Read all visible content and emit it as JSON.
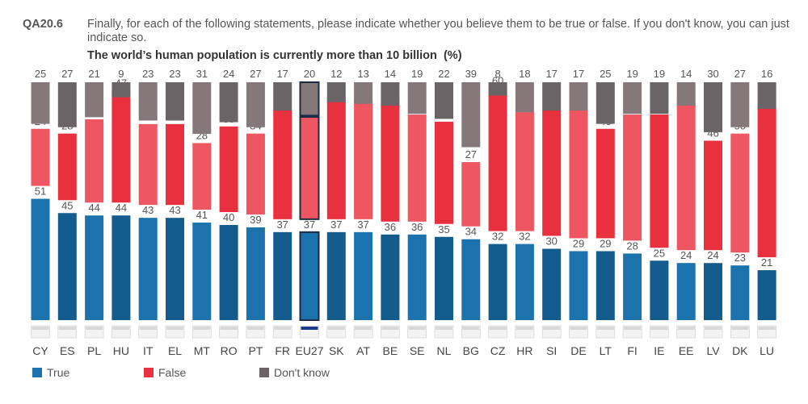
{
  "header": {
    "question_code": "QA20.6",
    "question_text": "Finally, for each of the following statements, please indicate whether you believe them to be true or false. If you don't know, you can just indicate so.",
    "subtitle": "The world’s human population is currently more than 10 billion",
    "subtitle_unit": "(%)"
  },
  "legend": {
    "true_label": "True",
    "false_label": "False",
    "dont_know_label": "Don't know"
  },
  "colors": {
    "true": "#1B72AC",
    "true_dark": "#145C8D",
    "false": "#E8303F",
    "false_light": "#EE5661",
    "dont_know": "#85787B",
    "dont_know_dark": "#6B6466",
    "highlight_outline": "#1F2A44"
  },
  "chart_data": {
    "type": "bar",
    "stacked": true,
    "categories": [
      "CY",
      "ES",
      "PL",
      "HU",
      "IT",
      "EL",
      "MT",
      "RO",
      "PT",
      "FR",
      "EU27",
      "SK",
      "AT",
      "BE",
      "SE",
      "NL",
      "BG",
      "CZ",
      "HR",
      "SI",
      "DE",
      "LT",
      "FI",
      "IE",
      "EE",
      "LV",
      "DK",
      "LU"
    ],
    "highlight": "EU27",
    "series": [
      {
        "name": "True",
        "values": [
          51,
          45,
          44,
          44,
          43,
          43,
          41,
          40,
          39,
          37,
          37,
          37,
          37,
          36,
          36,
          35,
          34,
          32,
          32,
          30,
          29,
          29,
          28,
          25,
          24,
          24,
          23,
          21
        ]
      },
      {
        "name": "False",
        "values": [
          24,
          28,
          35,
          47,
          34,
          34,
          28,
          36,
          34,
          46,
          43,
          51,
          50,
          50,
          45,
          43,
          27,
          60,
          50,
          53,
          54,
          46,
          53,
          56,
          62,
          46,
          50,
          63
        ]
      },
      {
        "name": "Don't know",
        "values": [
          25,
          27,
          21,
          9,
          23,
          23,
          31,
          24,
          27,
          17,
          20,
          12,
          13,
          14,
          19,
          22,
          39,
          8,
          18,
          17,
          17,
          25,
          19,
          19,
          14,
          30,
          27,
          16
        ]
      }
    ],
    "ylim": [
      0,
      100
    ]
  }
}
